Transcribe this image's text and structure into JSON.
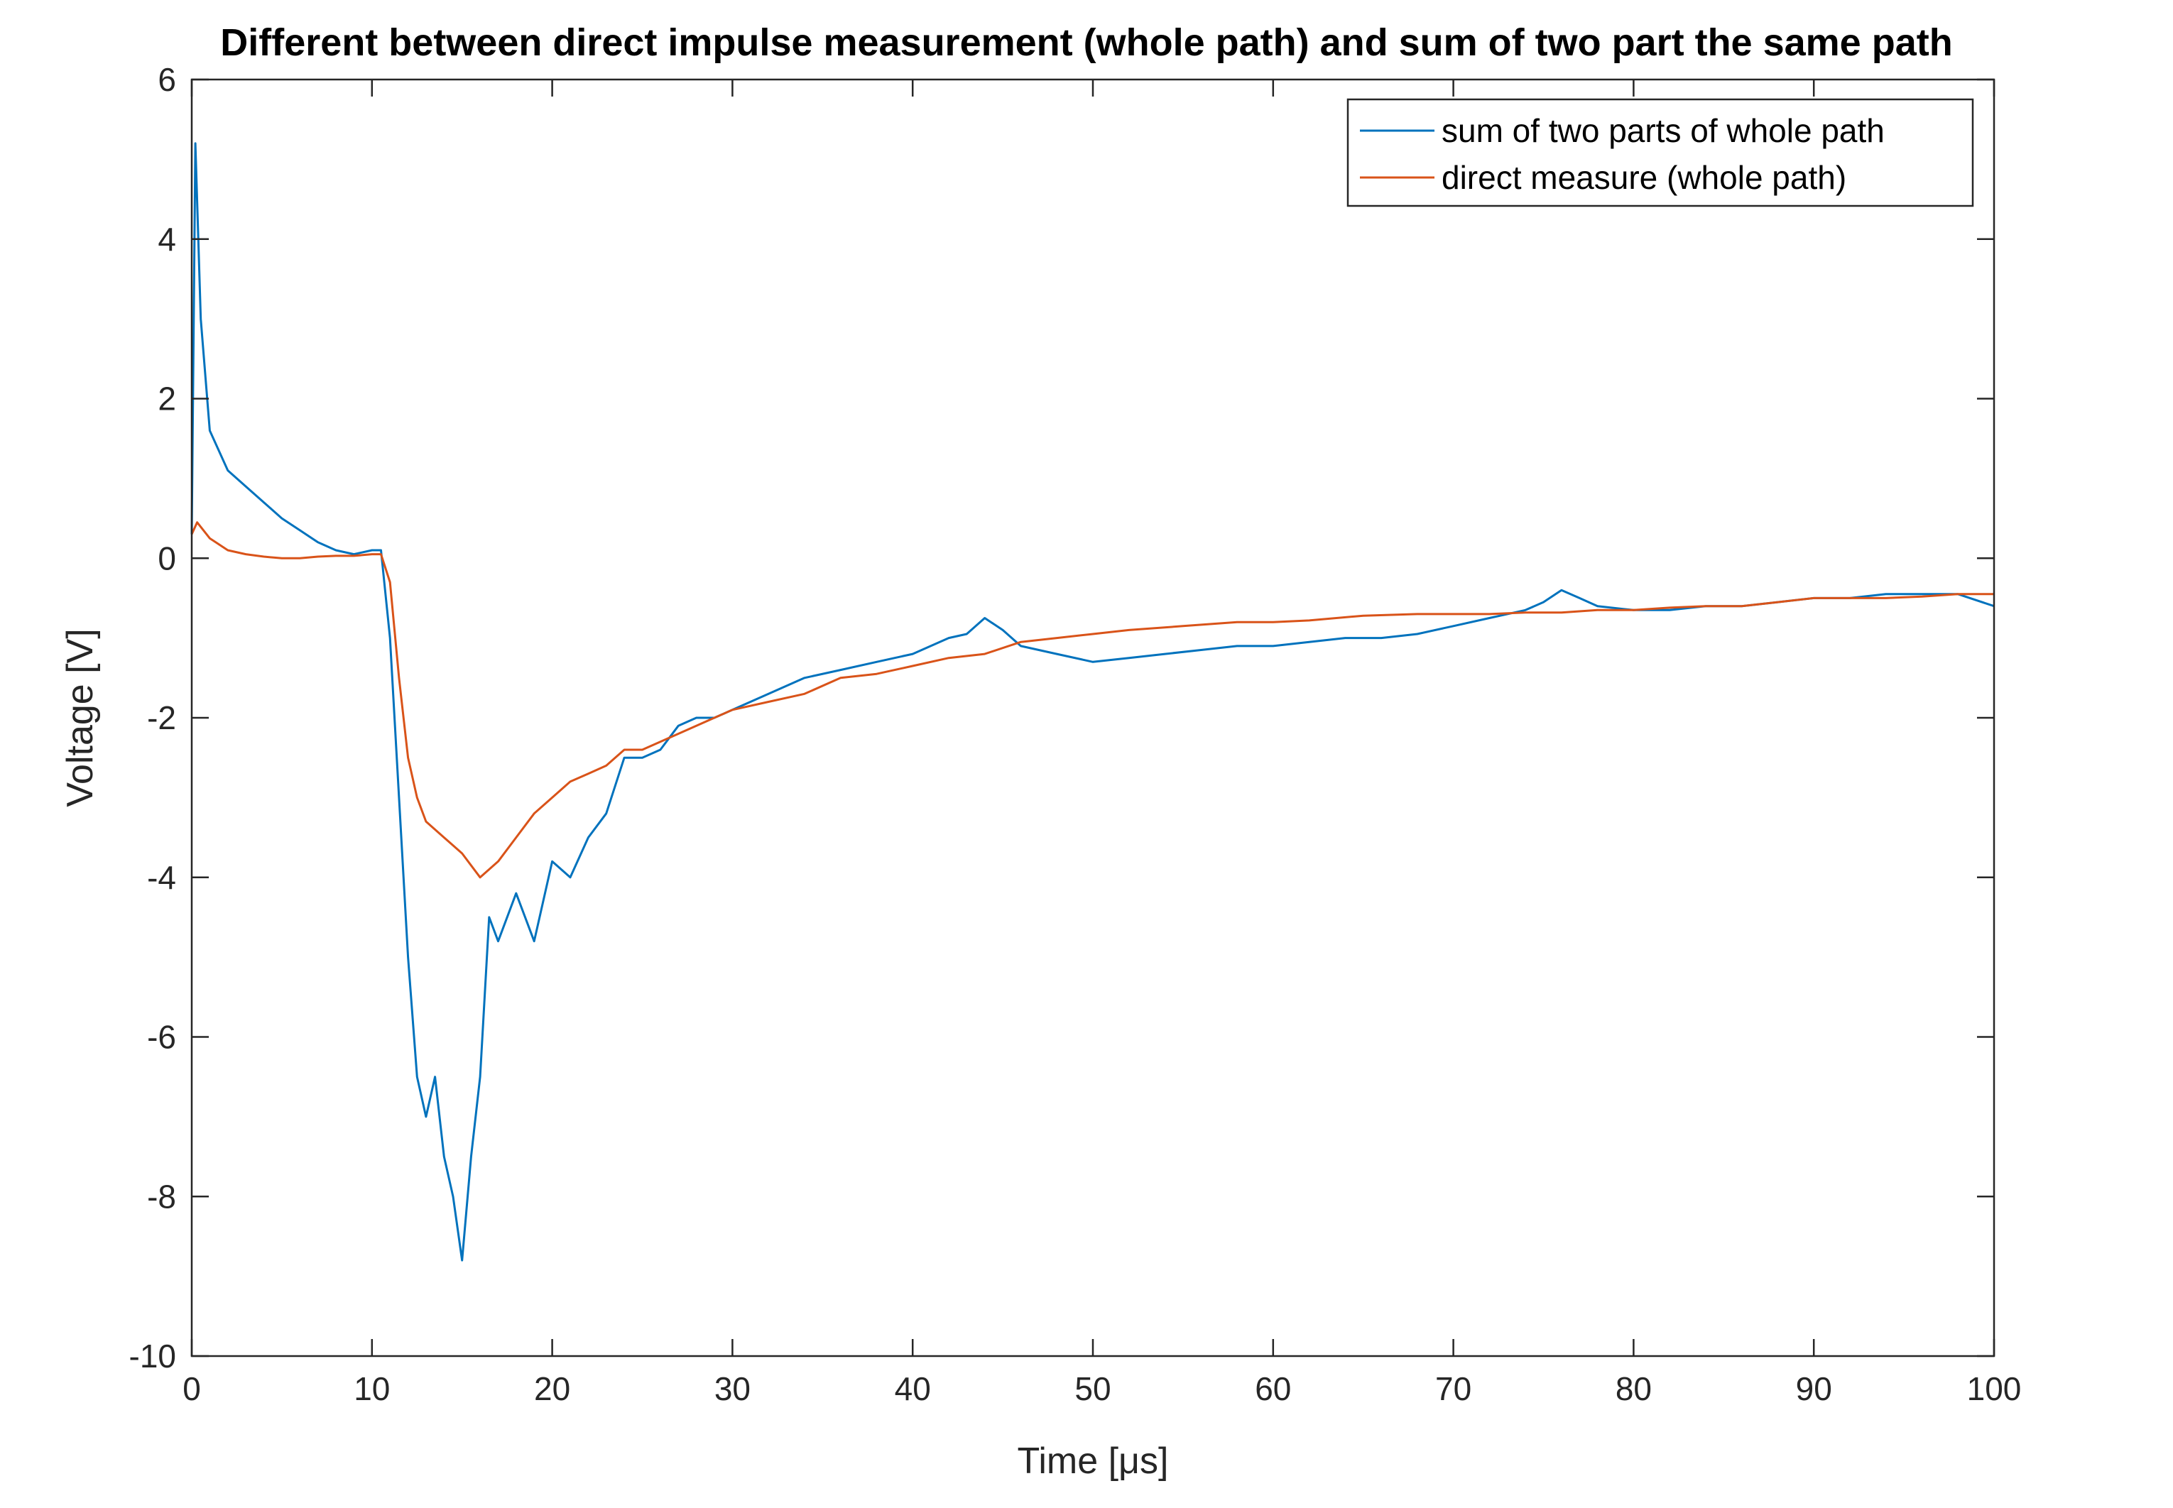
{
  "chart_data": {
    "type": "line",
    "title": "Different between direct impulse measurement (whole path) and sum of two part the same path",
    "xlabel": "Time [μs]",
    "ylabel": "Voltage [V]",
    "xlim": [
      0,
      100
    ],
    "ylim": [
      -10,
      6
    ],
    "xticks": [
      0,
      10,
      20,
      30,
      40,
      50,
      60,
      70,
      80,
      90,
      100
    ],
    "yticks": [
      -10,
      -8,
      -6,
      -4,
      -2,
      0,
      2,
      4,
      6
    ],
    "grid": false,
    "legend_position": "top-right",
    "series": [
      {
        "name": "sum of two parts of whole path",
        "color": "#0072BD",
        "x": [
          0,
          0.2,
          0.5,
          1,
          2,
          3,
          4,
          5,
          6,
          7,
          8,
          9,
          10,
          10.5,
          11,
          11.5,
          12,
          12.5,
          13,
          13.5,
          14,
          14.5,
          15,
          15.5,
          16,
          16.5,
          17,
          18,
          19,
          20,
          21,
          22,
          23,
          24,
          25,
          26,
          27,
          28,
          29,
          30,
          32,
          34,
          36,
          38,
          40,
          42,
          43,
          44,
          45,
          46,
          48,
          50,
          52,
          54,
          56,
          58,
          60,
          62,
          64,
          66,
          68,
          70,
          72,
          74,
          75,
          76,
          77,
          78,
          80,
          82,
          84,
          86,
          88,
          90,
          92,
          94,
          96,
          98,
          100
        ],
        "y": [
          0.3,
          5.2,
          3.0,
          1.6,
          1.1,
          0.9,
          0.7,
          0.5,
          0.35,
          0.2,
          0.1,
          0.05,
          0.1,
          0.1,
          -1.0,
          -3.0,
          -5.0,
          -6.5,
          -7.0,
          -6.5,
          -7.5,
          -8.0,
          -8.8,
          -7.5,
          -6.5,
          -4.5,
          -4.8,
          -4.2,
          -4.8,
          -3.8,
          -4.0,
          -3.5,
          -3.2,
          -2.5,
          -2.5,
          -2.4,
          -2.1,
          -2.0,
          -2.0,
          -1.9,
          -1.7,
          -1.5,
          -1.4,
          -1.3,
          -1.2,
          -1.0,
          -0.95,
          -0.75,
          -0.9,
          -1.1,
          -1.2,
          -1.3,
          -1.25,
          -1.2,
          -1.15,
          -1.1,
          -1.1,
          -1.05,
          -1.0,
          -1.0,
          -0.95,
          -0.85,
          -0.75,
          -0.65,
          -0.55,
          -0.4,
          -0.5,
          -0.6,
          -0.65,
          -0.65,
          -0.6,
          -0.6,
          -0.55,
          -0.5,
          -0.5,
          -0.45,
          -0.45,
          -0.45,
          -0.6
        ]
      },
      {
        "name": "direct measure (whole path)",
        "color": "#D95319",
        "x": [
          0,
          0.3,
          1,
          2,
          3,
          4,
          5,
          6,
          7,
          8,
          9,
          10,
          10.5,
          11,
          11.5,
          12,
          12.5,
          13,
          14,
          15,
          16,
          17,
          18,
          19,
          20,
          21,
          22,
          23,
          24,
          25,
          26,
          28,
          30,
          32,
          34,
          36,
          38,
          40,
          42,
          44,
          46,
          48,
          50,
          52,
          55,
          58,
          60,
          62,
          65,
          68,
          70,
          72,
          74,
          76,
          78,
          80,
          82,
          84,
          86,
          88,
          90,
          92,
          94,
          96,
          98,
          100
        ],
        "y": [
          0.3,
          0.45,
          0.25,
          0.1,
          0.05,
          0.02,
          0.0,
          0.0,
          0.02,
          0.03,
          0.03,
          0.05,
          0.05,
          -0.3,
          -1.5,
          -2.5,
          -3.0,
          -3.3,
          -3.5,
          -3.7,
          -4.0,
          -3.8,
          -3.5,
          -3.2,
          -3.0,
          -2.8,
          -2.7,
          -2.6,
          -2.4,
          -2.4,
          -2.3,
          -2.1,
          -1.9,
          -1.8,
          -1.7,
          -1.5,
          -1.45,
          -1.35,
          -1.25,
          -1.2,
          -1.05,
          -1.0,
          -0.95,
          -0.9,
          -0.85,
          -0.8,
          -0.8,
          -0.78,
          -0.72,
          -0.7,
          -0.7,
          -0.7,
          -0.68,
          -0.68,
          -0.65,
          -0.65,
          -0.62,
          -0.6,
          -0.6,
          -0.55,
          -0.5,
          -0.5,
          -0.5,
          -0.48,
          -0.45,
          -0.45
        ]
      }
    ]
  }
}
